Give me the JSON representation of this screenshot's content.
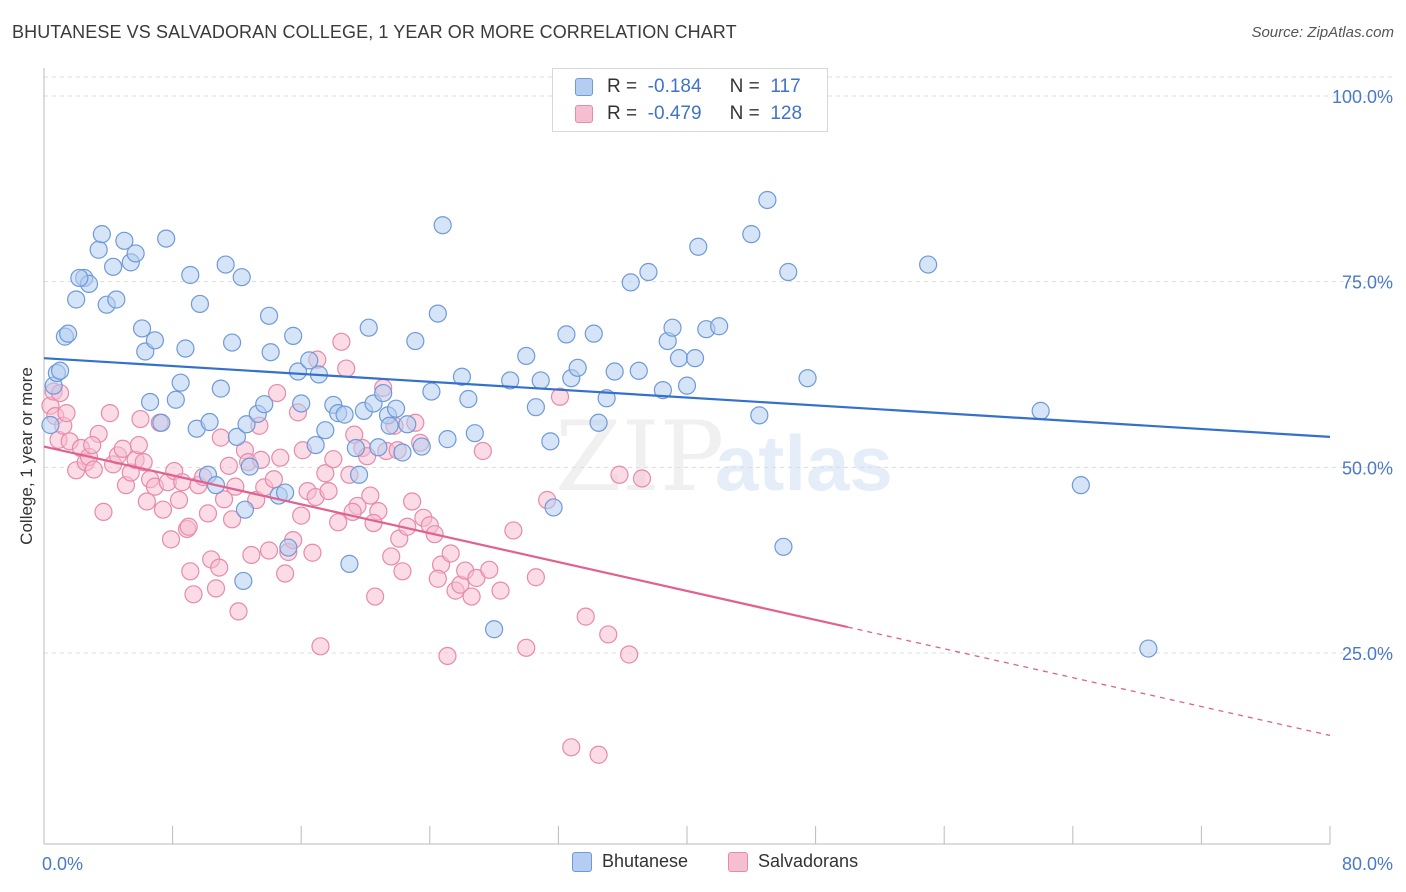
{
  "title": "BHUTANESE VS SALVADORAN COLLEGE, 1 YEAR OR MORE CORRELATION CHART",
  "source": "Source: ZipAtlas.com",
  "watermark": {
    "zip": "ZIP",
    "atlas": "atlas"
  },
  "legend": {
    "rows": [
      {
        "r_label": "R =",
        "r_value": "-0.184",
        "n_label": "N =",
        "n_value": "117"
      },
      {
        "r_label": "R =",
        "r_value": "-0.479",
        "n_label": "N =",
        "n_value": "128"
      }
    ]
  },
  "colors": {
    "blue_fill": "#b5cdf0",
    "blue_stroke": "#6f9ad8",
    "blue_line": "#3471cc",
    "pink_fill": "#f6bed1",
    "pink_stroke": "#e88aaa",
    "pink_line": "#e0628f",
    "axis_text": "#4a7ac7",
    "grid": "#dcdcdc"
  },
  "chart_data": {
    "type": "scatter",
    "title": "BHUTANESE VS SALVADORAN COLLEGE, 1 YEAR OR MORE CORRELATION CHART",
    "xlabel": "",
    "ylabel": "College, 1 year or more",
    "xlim": [
      0,
      80
    ],
    "ylim": [
      0,
      104
    ],
    "x_tick_labels": [
      {
        "value": 0,
        "label": "0.0%"
      },
      {
        "value": 80,
        "label": "80.0%"
      }
    ],
    "y_tick_labels": [
      {
        "value": 100,
        "label": "100.0%"
      },
      {
        "value": 75,
        "label": "75.0%"
      },
      {
        "value": 50,
        "label": "50.0%"
      },
      {
        "value": 25,
        "label": "25.0%"
      }
    ],
    "grid": true,
    "legend_position": "top-center",
    "series": [
      {
        "name": "Bhutanese",
        "color": "#b5cdf0",
        "R": -0.184,
        "N": 117,
        "trend": {
          "x": [
            0,
            80
          ],
          "y": [
            64.7,
            54.1
          ],
          "dashed_from": null
        },
        "points": [
          [
            0.4,
            55.7
          ],
          [
            0.6,
            61.0
          ],
          [
            0.8,
            62.7
          ],
          [
            1.0,
            63.0
          ],
          [
            1.3,
            67.6
          ],
          [
            1.5,
            68.0
          ],
          [
            2.0,
            72.6
          ],
          [
            2.5,
            75.5
          ],
          [
            2.8,
            74.7
          ],
          [
            3.4,
            79.3
          ],
          [
            3.6,
            81.4
          ],
          [
            3.9,
            71.9
          ],
          [
            4.3,
            77.0
          ],
          [
            4.5,
            72.6
          ],
          [
            5.0,
            80.5
          ],
          [
            5.4,
            77.6
          ],
          [
            5.7,
            78.8
          ],
          [
            6.1,
            68.7
          ],
          [
            6.3,
            65.6
          ],
          [
            6.6,
            58.8
          ],
          [
            6.9,
            67.1
          ],
          [
            7.3,
            56.0
          ],
          [
            7.6,
            80.8
          ],
          [
            8.2,
            59.1
          ],
          [
            8.5,
            61.4
          ],
          [
            8.8,
            66.0
          ],
          [
            9.1,
            75.9
          ],
          [
            9.5,
            55.2
          ],
          [
            9.7,
            72.0
          ],
          [
            10.2,
            49.0
          ],
          [
            10.3,
            56.1
          ],
          [
            10.7,
            47.6
          ],
          [
            11.0,
            60.6
          ],
          [
            11.3,
            77.3
          ],
          [
            11.7,
            66.8
          ],
          [
            12.0,
            54.1
          ],
          [
            12.3,
            75.6
          ],
          [
            12.4,
            34.7
          ],
          [
            12.5,
            44.3
          ],
          [
            12.6,
            55.8
          ],
          [
            12.8,
            50.1
          ],
          [
            13.3,
            57.2
          ],
          [
            13.7,
            58.5
          ],
          [
            14.0,
            70.4
          ],
          [
            14.1,
            65.5
          ],
          [
            14.6,
            46.2
          ],
          [
            15.0,
            46.6
          ],
          [
            15.2,
            39.2
          ],
          [
            15.5,
            67.7
          ],
          [
            15.8,
            62.9
          ],
          [
            16.0,
            58.6
          ],
          [
            16.5,
            64.4
          ],
          [
            16.9,
            53.0
          ],
          [
            17.1,
            62.5
          ],
          [
            17.5,
            55.0
          ],
          [
            18.0,
            58.4
          ],
          [
            18.3,
            57.3
          ],
          [
            18.7,
            57.1
          ],
          [
            19.0,
            37.0
          ],
          [
            19.4,
            52.6
          ],
          [
            19.6,
            49.0
          ],
          [
            19.9,
            57.6
          ],
          [
            20.2,
            68.8
          ],
          [
            20.5,
            58.6
          ],
          [
            20.8,
            52.7
          ],
          [
            21.1,
            60.0
          ],
          [
            21.4,
            57.0
          ],
          [
            21.5,
            55.6
          ],
          [
            21.9,
            57.9
          ],
          [
            22.3,
            52.0
          ],
          [
            22.6,
            55.8
          ],
          [
            23.1,
            67.0
          ],
          [
            23.5,
            52.8
          ],
          [
            24.1,
            60.2
          ],
          [
            24.5,
            70.7
          ],
          [
            24.8,
            82.6
          ],
          [
            25.1,
            53.8
          ],
          [
            26.0,
            62.2
          ],
          [
            26.4,
            59.2
          ],
          [
            26.8,
            54.6
          ],
          [
            28.0,
            28.2
          ],
          [
            29.0,
            61.7
          ],
          [
            30.0,
            65.0
          ],
          [
            30.6,
            58.1
          ],
          [
            30.9,
            61.7
          ],
          [
            31.5,
            53.5
          ],
          [
            31.7,
            44.6
          ],
          [
            32.5,
            67.9
          ],
          [
            32.8,
            62.0
          ],
          [
            33.2,
            63.4
          ],
          [
            34.2,
            68.0
          ],
          [
            34.5,
            56.0
          ],
          [
            35.0,
            59.3
          ],
          [
            35.5,
            62.9
          ],
          [
            36.5,
            74.9
          ],
          [
            37.0,
            63.0
          ],
          [
            37.6,
            76.3
          ],
          [
            38.5,
            60.4
          ],
          [
            38.8,
            67.0
          ],
          [
            39.1,
            68.8
          ],
          [
            39.5,
            64.7
          ],
          [
            40.0,
            61.0
          ],
          [
            40.5,
            64.7
          ],
          [
            40.7,
            79.7
          ],
          [
            41.2,
            68.6
          ],
          [
            42.0,
            69.0
          ],
          [
            44.0,
            81.4
          ],
          [
            44.5,
            57.0
          ],
          [
            45.0,
            86.0
          ],
          [
            46.0,
            39.3
          ],
          [
            46.3,
            76.3
          ],
          [
            47.5,
            62.0
          ],
          [
            55.0,
            77.3
          ],
          [
            62.0,
            57.6
          ],
          [
            64.5,
            47.6
          ],
          [
            68.7,
            25.6
          ],
          [
            2.2,
            75.5
          ]
        ]
      },
      {
        "name": "Salvadorans",
        "color": "#f6bed1",
        "R": -0.479,
        "N": 128,
        "trend": {
          "x": [
            0,
            80
          ],
          "y": [
            52.8,
            13.9
          ],
          "dashed_from": 50
        },
        "points": [
          [
            0.4,
            58.3
          ],
          [
            0.6,
            60.2
          ],
          [
            0.7,
            56.9
          ],
          [
            0.9,
            53.7
          ],
          [
            1.2,
            55.6
          ],
          [
            1.4,
            57.3
          ],
          [
            1.6,
            53.5
          ],
          [
            2.0,
            49.6
          ],
          [
            2.3,
            52.6
          ],
          [
            2.6,
            50.7
          ],
          [
            2.8,
            51.4
          ],
          [
            3.1,
            49.7
          ],
          [
            3.4,
            54.5
          ],
          [
            3.7,
            44.0
          ],
          [
            4.1,
            57.3
          ],
          [
            4.3,
            50.4
          ],
          [
            4.6,
            51.6
          ],
          [
            4.9,
            52.5
          ],
          [
            5.1,
            47.6
          ],
          [
            5.4,
            49.3
          ],
          [
            5.7,
            51.0
          ],
          [
            5.9,
            53.0
          ],
          [
            6.2,
            50.7
          ],
          [
            6.4,
            45.4
          ],
          [
            6.6,
            48.4
          ],
          [
            6.9,
            47.4
          ],
          [
            7.2,
            56.0
          ],
          [
            7.4,
            44.3
          ],
          [
            7.7,
            48.0
          ],
          [
            7.9,
            40.3
          ],
          [
            8.1,
            49.5
          ],
          [
            8.4,
            45.6
          ],
          [
            8.6,
            48.0
          ],
          [
            8.9,
            41.7
          ],
          [
            9.1,
            36.0
          ],
          [
            9.3,
            32.9
          ],
          [
            9.6,
            47.6
          ],
          [
            9.9,
            48.7
          ],
          [
            10.2,
            43.8
          ],
          [
            10.4,
            37.6
          ],
          [
            10.7,
            33.7
          ],
          [
            10.9,
            36.5
          ],
          [
            11.2,
            45.7
          ],
          [
            11.5,
            50.2
          ],
          [
            11.7,
            43.0
          ],
          [
            11.9,
            47.4
          ],
          [
            12.1,
            30.6
          ],
          [
            12.5,
            52.3
          ],
          [
            12.7,
            50.7
          ],
          [
            12.9,
            38.2
          ],
          [
            13.2,
            45.6
          ],
          [
            13.4,
            55.6
          ],
          [
            13.7,
            47.3
          ],
          [
            14.0,
            38.8
          ],
          [
            14.3,
            48.4
          ],
          [
            14.5,
            60.0
          ],
          [
            14.7,
            51.3
          ],
          [
            15.0,
            35.7
          ],
          [
            15.2,
            38.6
          ],
          [
            15.5,
            40.2
          ],
          [
            15.8,
            57.4
          ],
          [
            16.1,
            52.3
          ],
          [
            16.4,
            46.8
          ],
          [
            16.7,
            38.5
          ],
          [
            16.9,
            46.0
          ],
          [
            17.2,
            25.9
          ],
          [
            17.5,
            49.2
          ],
          [
            17.7,
            46.8
          ],
          [
            18.0,
            51.1
          ],
          [
            18.3,
            42.6
          ],
          [
            18.5,
            66.9
          ],
          [
            18.8,
            63.3
          ],
          [
            19.0,
            49.0
          ],
          [
            19.3,
            54.4
          ],
          [
            19.5,
            44.8
          ],
          [
            19.8,
            52.6
          ],
          [
            20.1,
            51.5
          ],
          [
            20.3,
            46.2
          ],
          [
            20.6,
            32.6
          ],
          [
            20.8,
            44.1
          ],
          [
            21.1,
            60.7
          ],
          [
            21.3,
            52.2
          ],
          [
            21.6,
            38.0
          ],
          [
            21.8,
            55.6
          ],
          [
            22.1,
            40.4
          ],
          [
            22.3,
            36.0
          ],
          [
            22.6,
            42.0
          ],
          [
            22.9,
            45.4
          ],
          [
            23.1,
            56.0
          ],
          [
            23.4,
            53.3
          ],
          [
            23.6,
            43.2
          ],
          [
            24.0,
            42.2
          ],
          [
            24.3,
            41.0
          ],
          [
            24.7,
            36.9
          ],
          [
            25.1,
            24.6
          ],
          [
            25.3,
            38.4
          ],
          [
            25.6,
            33.4
          ],
          [
            25.9,
            34.2
          ],
          [
            26.2,
            36.1
          ],
          [
            26.6,
            32.6
          ],
          [
            26.9,
            35.1
          ],
          [
            27.3,
            52.2
          ],
          [
            27.7,
            36.2
          ],
          [
            28.4,
            33.4
          ],
          [
            29.2,
            41.5
          ],
          [
            30.0,
            25.7
          ],
          [
            30.6,
            35.2
          ],
          [
            31.3,
            45.6
          ],
          [
            32.1,
            59.5
          ],
          [
            32.8,
            12.3
          ],
          [
            33.7,
            29.9
          ],
          [
            34.5,
            11.3
          ],
          [
            35.1,
            27.5
          ],
          [
            35.8,
            49.0
          ],
          [
            36.4,
            24.8
          ],
          [
            37.2,
            48.5
          ],
          [
            1.0,
            60.0
          ],
          [
            3.0,
            53.0
          ],
          [
            6.0,
            56.5
          ],
          [
            9.0,
            42.0
          ],
          [
            11.0,
            54.0
          ],
          [
            13.5,
            51.0
          ],
          [
            16.0,
            43.5
          ],
          [
            17.0,
            64.5
          ],
          [
            19.2,
            44.0
          ],
          [
            20.5,
            42.5
          ],
          [
            22.0,
            52.3
          ],
          [
            24.5,
            35.0
          ]
        ]
      }
    ]
  }
}
